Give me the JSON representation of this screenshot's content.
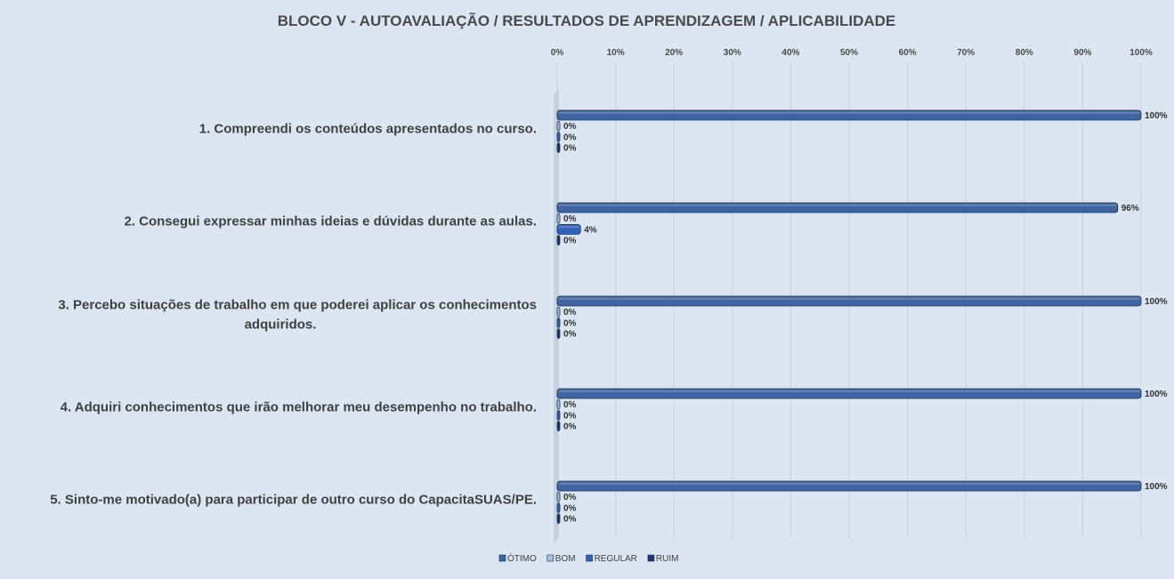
{
  "chart_data": {
    "type": "bar",
    "orientation": "horizontal",
    "title": "BLOCO V - AUTOAVALIAÇÃO / RESULTADOS DE APRENDIZAGEM / APLICABILIDADE",
    "x_ticks": [
      "0%",
      "10%",
      "20%",
      "30%",
      "40%",
      "50%",
      "60%",
      "70%",
      "80%",
      "90%",
      "100%"
    ],
    "xlim": [
      0,
      100
    ],
    "grid": true,
    "legend_position": "bottom",
    "categories": [
      [
        "1. Compreendi os conteúdos apresentados no curso."
      ],
      [
        "2. Consegui expressar minhas ideias e dúvidas durante as aulas."
      ],
      [
        "3. Percebo situações de trabalho em que poderei aplicar os conhecimentos",
        "adquiridos."
      ],
      [
        "4. Adquiri conhecimentos que irão melhorar meu desempenho no trabalho."
      ],
      [
        "5. Sinto-me motivado(a) para participar de outro curso do CapacitaSUAS/PE."
      ]
    ],
    "series": [
      {
        "name": "ÓTIMO",
        "color": "#3f64a0",
        "values": [
          100,
          96,
          100,
          100,
          100
        ],
        "labels": [
          "100%",
          "96%",
          "100%",
          "100%",
          "100%"
        ]
      },
      {
        "name": "BOM",
        "color": "#a9bfdc",
        "values": [
          0,
          0,
          0,
          0,
          0
        ],
        "labels": [
          "0%",
          "0%",
          "0%",
          "0%",
          "0%"
        ]
      },
      {
        "name": "REGULAR",
        "color": "#2e63b8",
        "values": [
          0,
          4,
          0,
          0,
          0
        ],
        "labels": [
          "0%",
          "4%",
          "0%",
          "0%",
          "0%"
        ]
      },
      {
        "name": "RUIM",
        "color": "#1c3769",
        "values": [
          0,
          0,
          0,
          0,
          0
        ],
        "labels": [
          "0%",
          "0%",
          "0%",
          "0%",
          "0%"
        ]
      }
    ]
  }
}
